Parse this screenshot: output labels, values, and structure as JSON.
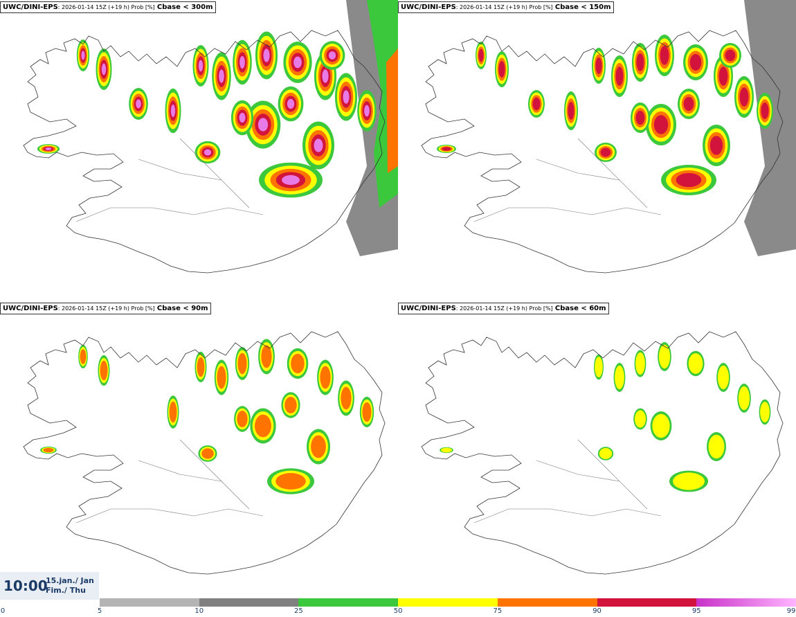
{
  "panels": [
    {
      "model": "UWC/DINI-EPS",
      "meta": ": 2026-01-14 15Z (+19 h) Prob [%]",
      "param": "Cbase < 300m"
    },
    {
      "model": "UWC/DINI-EPS",
      "meta": ": 2026-01-14 15Z (+19 h) Prob [%]",
      "param": "Cbase < 150m"
    },
    {
      "model": "UWC/DINI-EPS",
      "meta": ": 2026-01-14 15Z (+19 h) Prob [%]",
      "param": "Cbase < 90m"
    },
    {
      "model": "UWC/DINI-EPS",
      "meta": ": 2026-01-14 15Z (+19 h) Prob [%]",
      "param": "Cbase < 60m"
    }
  ],
  "valid": {
    "time": "10:00",
    "date_line1": "15.jan./ Jan",
    "date_line2": "Fim./ Thu"
  },
  "colorbar": {
    "ticks": [
      "0",
      "5",
      "10",
      "25",
      "50",
      "75",
      "90",
      "95",
      "99"
    ],
    "segments": [
      {
        "from": "5",
        "to": "10",
        "color": "#b4b4b4"
      },
      {
        "from": "10",
        "to": "25",
        "color": "#808080"
      },
      {
        "from": "25",
        "to": "50",
        "color": "#3cc83c"
      },
      {
        "from": "50",
        "to": "75",
        "color": "#ffff00"
      },
      {
        "from": "75",
        "to": "90",
        "color": "#ff7300"
      },
      {
        "from": "90",
        "to": "95",
        "color": "#d2143c"
      },
      {
        "from": "95",
        "to": "99",
        "color": "#c832c8",
        "gradient_to": "#ffb4ff"
      }
    ]
  }
}
